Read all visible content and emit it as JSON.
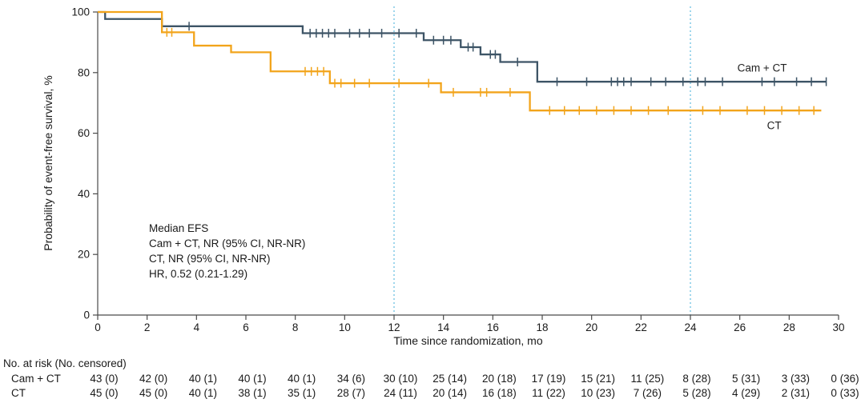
{
  "colors": {
    "cam_ct": "#3d5466",
    "ct": "#f2a41b",
    "reference_line": "#74c4e3",
    "axis": "#4a4a4a",
    "text": "#1a1a1a"
  },
  "chart_data": {
    "type": "line",
    "subtype": "kaplan-meier-step",
    "title": "",
    "xlabel": "Time since randomization, mo",
    "ylabel": "Probability of event-free survival, %",
    "xlim": [
      0,
      30
    ],
    "ylim": [
      0,
      100
    ],
    "xticks": [
      0,
      2,
      4,
      6,
      8,
      10,
      12,
      14,
      16,
      18,
      20,
      22,
      24,
      26,
      28,
      30
    ],
    "yticks": [
      0,
      20,
      40,
      60,
      80,
      100
    ],
    "grid": false,
    "reference_lines_x": [
      12,
      24
    ],
    "series": [
      {
        "name": "Cam + CT",
        "color": "#3d5466",
        "label_pos": {
          "x": 25.9,
          "y": 81.5
        },
        "end_time": 29.5,
        "step_points": [
          [
            0,
            100
          ],
          [
            0.3,
            97.7
          ],
          [
            2.6,
            95.3
          ],
          [
            8.3,
            93
          ],
          [
            13.2,
            90.7
          ],
          [
            14.7,
            88.4
          ],
          [
            15.5,
            86
          ],
          [
            16.3,
            83.5
          ],
          [
            17.8,
            77
          ]
        ],
        "censor_marks": [
          [
            3.7,
            95.3
          ],
          [
            8.6,
            93
          ],
          [
            8.85,
            93
          ],
          [
            9.1,
            93
          ],
          [
            9.35,
            93
          ],
          [
            9.6,
            93
          ],
          [
            10.2,
            93
          ],
          [
            10.6,
            93
          ],
          [
            11.0,
            93
          ],
          [
            11.5,
            93
          ],
          [
            12.2,
            93
          ],
          [
            12.9,
            93
          ],
          [
            13.6,
            90.7
          ],
          [
            14.0,
            90.7
          ],
          [
            14.3,
            90.7
          ],
          [
            15.0,
            88.4
          ],
          [
            15.2,
            88.4
          ],
          [
            15.9,
            86
          ],
          [
            16.1,
            86
          ],
          [
            17.0,
            83.5
          ],
          [
            18.6,
            77
          ],
          [
            19.8,
            77
          ],
          [
            20.8,
            77
          ],
          [
            21.05,
            77
          ],
          [
            21.3,
            77
          ],
          [
            21.6,
            77
          ],
          [
            22.4,
            77
          ],
          [
            23.0,
            77
          ],
          [
            23.7,
            77
          ],
          [
            24.3,
            77
          ],
          [
            24.6,
            77
          ],
          [
            25.3,
            77
          ],
          [
            26.9,
            77
          ],
          [
            27.4,
            77
          ],
          [
            28.3,
            77
          ],
          [
            28.9,
            77
          ],
          [
            29.5,
            77
          ]
        ]
      },
      {
        "name": "CT",
        "color": "#f2a41b",
        "label_pos": {
          "x": 27.1,
          "y": 62.5
        },
        "end_time": 29.3,
        "step_points": [
          [
            0,
            100
          ],
          [
            2.6,
            93.3
          ],
          [
            3.9,
            88.9
          ],
          [
            5.4,
            86.7
          ],
          [
            7.0,
            80.4
          ],
          [
            9.4,
            76.5
          ],
          [
            13.9,
            73.5
          ],
          [
            17.5,
            67.5
          ]
        ],
        "censor_marks": [
          [
            2.8,
            93.3
          ],
          [
            3.0,
            93.3
          ],
          [
            8.4,
            80.4
          ],
          [
            8.65,
            80.4
          ],
          [
            8.9,
            80.4
          ],
          [
            9.15,
            80.4
          ],
          [
            9.6,
            76.5
          ],
          [
            9.85,
            76.5
          ],
          [
            10.4,
            76.5
          ],
          [
            11.0,
            76.5
          ],
          [
            12.2,
            76.5
          ],
          [
            13.4,
            76.5
          ],
          [
            14.4,
            73.5
          ],
          [
            15.5,
            73.5
          ],
          [
            15.75,
            73.5
          ],
          [
            16.7,
            73.5
          ],
          [
            18.3,
            67.5
          ],
          [
            18.9,
            67.5
          ],
          [
            19.5,
            67.5
          ],
          [
            20.2,
            67.5
          ],
          [
            20.9,
            67.5
          ],
          [
            21.6,
            67.5
          ],
          [
            22.3,
            67.5
          ],
          [
            23.1,
            67.5
          ],
          [
            24.5,
            67.5
          ],
          [
            25.2,
            67.5
          ],
          [
            26.3,
            67.5
          ],
          [
            27.0,
            67.5
          ],
          [
            27.7,
            67.5
          ],
          [
            28.4,
            67.5
          ],
          [
            29.0,
            67.5
          ]
        ]
      }
    ],
    "annotation": {
      "lines": [
        "Median EFS",
        "Cam + CT, NR (95% CI, NR-NR)",
        "CT, NR (95% CI, NR-NR)",
        "HR, 0.52 (0.21-1.29)"
      ]
    }
  },
  "risk_table": {
    "header": "No. at risk (No. censored)",
    "time_points": [
      0,
      2,
      4,
      6,
      8,
      10,
      12,
      14,
      16,
      18,
      20,
      22,
      24,
      26,
      28,
      30
    ],
    "rows": [
      {
        "label": "Cam + CT",
        "values": [
          "43 (0)",
          "42 (0)",
          "40 (1)",
          "40 (1)",
          "40 (1)",
          "34 (6)",
          "30 (10)",
          "25 (14)",
          "20 (18)",
          "17 (19)",
          "15 (21)",
          "11 (25)",
          "8 (28)",
          "5 (31)",
          "3 (33)",
          "0 (36)"
        ]
      },
      {
        "label": "CT",
        "values": [
          "45 (0)",
          "45 (0)",
          "40 (1)",
          "38 (1)",
          "35 (1)",
          "28 (7)",
          "24 (11)",
          "20 (14)",
          "16 (18)",
          "11 (22)",
          "10 (23)",
          "7 (26)",
          "5 (28)",
          "4 (29)",
          "2 (31)",
          "0 (33)"
        ]
      }
    ]
  }
}
